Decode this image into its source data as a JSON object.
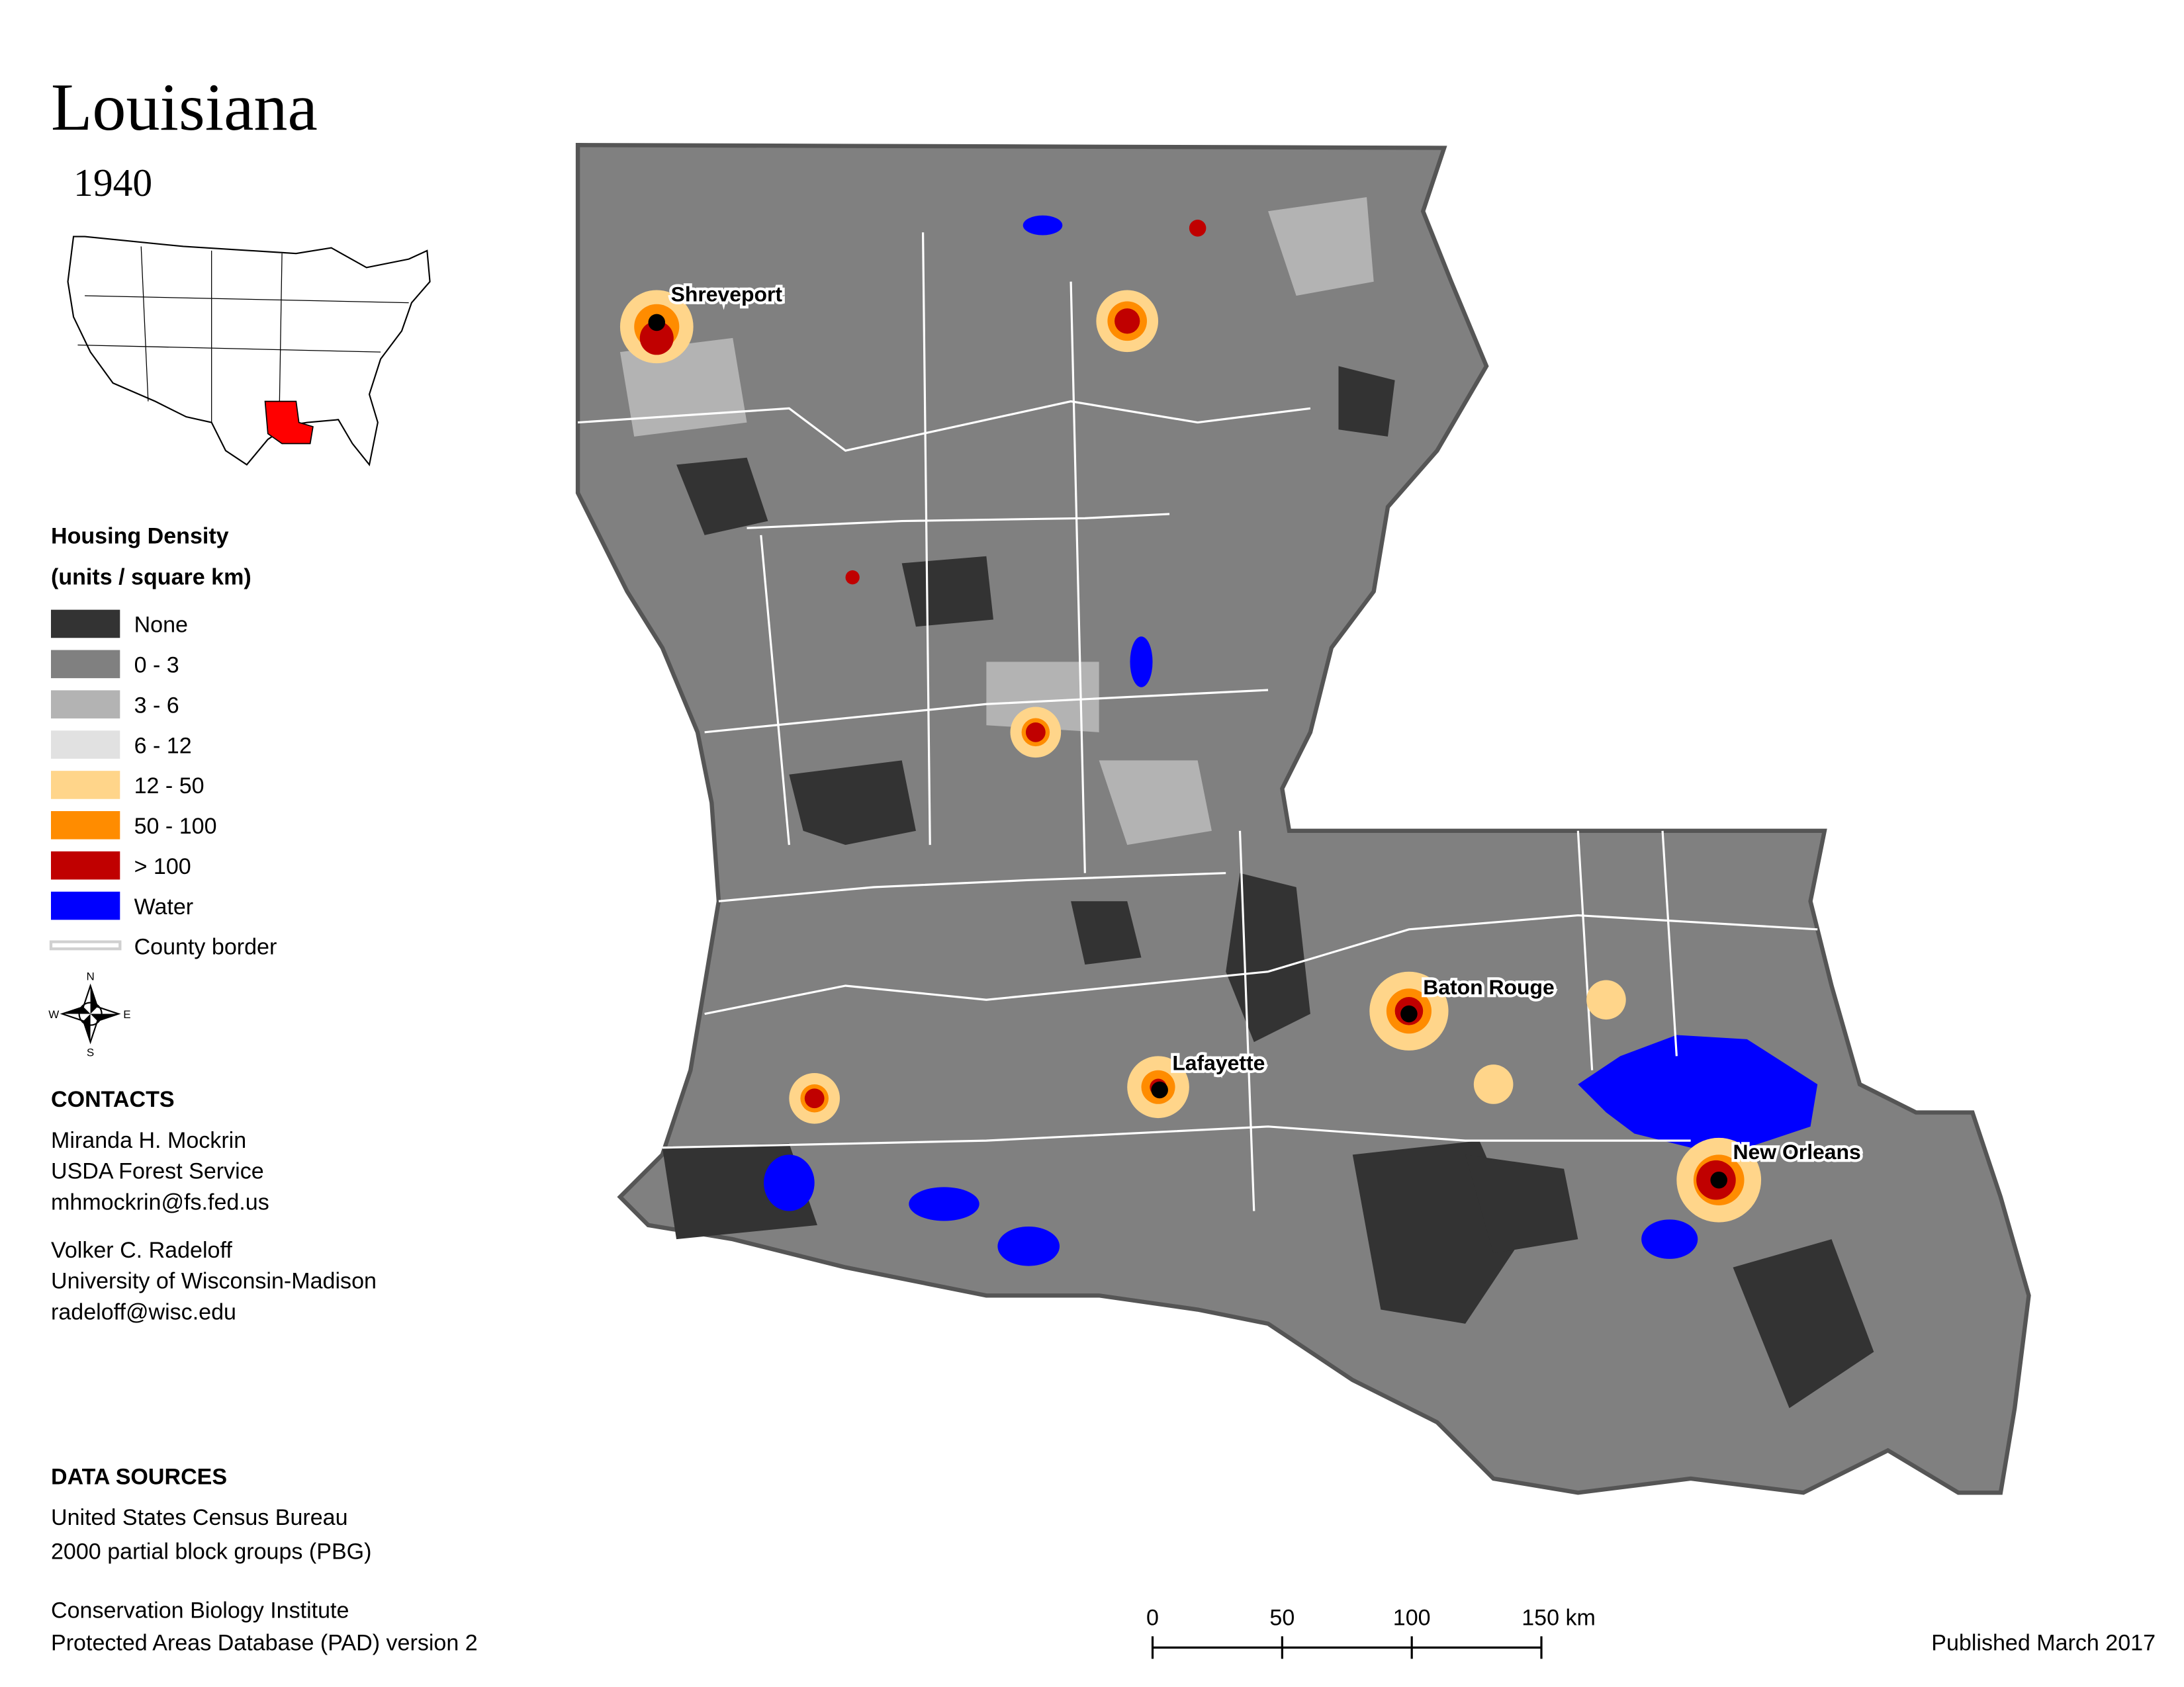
{
  "header": {
    "title": "Louisiana",
    "year": "1940"
  },
  "legend": {
    "title": "Housing Density",
    "subtitle": "(units / square km)",
    "items": [
      {
        "label": "None",
        "color": "#333333"
      },
      {
        "label": "0 - 3",
        "color": "#808080"
      },
      {
        "label": "3 - 6",
        "color": "#b3b3b3"
      },
      {
        "label": "6 - 12",
        "color": "#e1e1e1"
      },
      {
        "label": "12 - 50",
        "color": "#ffd58a"
      },
      {
        "label": "50 - 100",
        "color": "#ff8c00"
      },
      {
        "label": "> 100",
        "color": "#c00000"
      },
      {
        "label": "Water",
        "color": "#0000ff"
      },
      {
        "label": "County border",
        "color": "#d0d0d0"
      }
    ]
  },
  "compass": {
    "labels": [
      "N",
      "E",
      "S",
      "W"
    ]
  },
  "map": {
    "cities": [
      "Shreveport",
      "Baton Rouge",
      "Lafayette",
      "New Orleans"
    ]
  },
  "contacts": {
    "title": "CONTACTS",
    "people": [
      [
        "Miranda H. Mockrin",
        "USDA Forest Service",
        "mhmockrin@fs.fed.us"
      ],
      [
        "Volker C. Radeloff",
        "University of Wisconsin-Madison",
        "radeloff@wisc.edu"
      ]
    ]
  },
  "data_sources": {
    "title": "DATA SOURCES",
    "entries": [
      [
        "United States Census Bureau",
        "2000 partial block groups (PBG)"
      ],
      [
        "Conservation Biology Institute",
        "Protected Areas Database (PAD) version 2"
      ]
    ]
  },
  "scale_bar": {
    "labels": [
      "0",
      "50",
      "100",
      "150 km"
    ]
  },
  "footer": {
    "published": "Published March 2017"
  }
}
